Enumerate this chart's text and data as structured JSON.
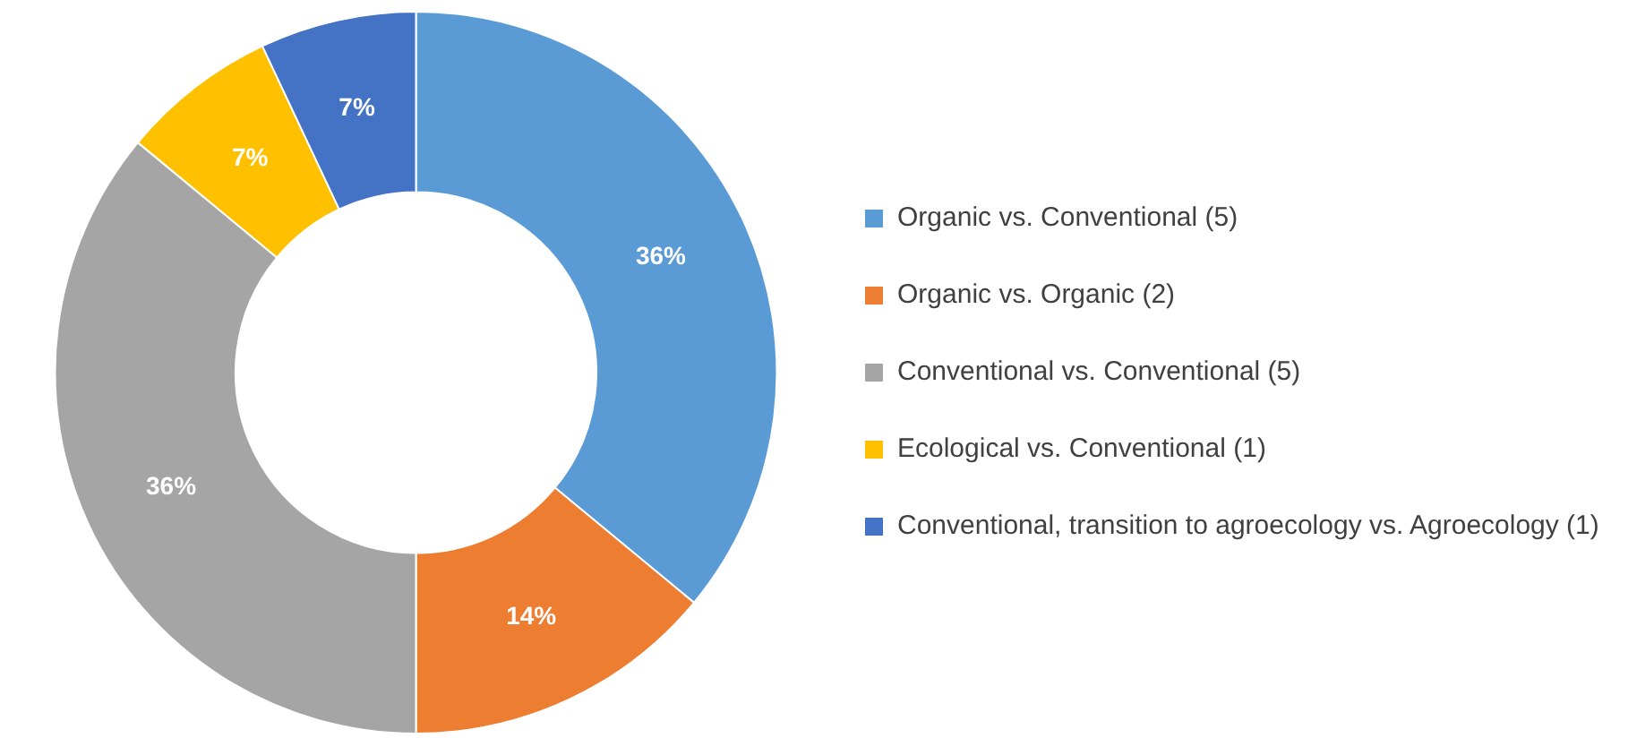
{
  "chart_data": {
    "type": "donut",
    "categories": [
      "Organic vs. Conventional (5)",
      "Organic vs. Organic (2)",
      "Conventional vs. Conventional (5)",
      "Ecological vs. Conventional (1)",
      "Conventional, transition to agroecology vs. Agroecology (1)"
    ],
    "values": [
      36,
      14,
      36,
      7,
      7
    ],
    "colors": [
      "#5b9bd5",
      "#ed7d31",
      "#a5a5a5",
      "#ffc000",
      "#4472c4"
    ],
    "value_labels": [
      "36%",
      "14%",
      "36%",
      "7%",
      "7%"
    ],
    "legend": "right"
  }
}
